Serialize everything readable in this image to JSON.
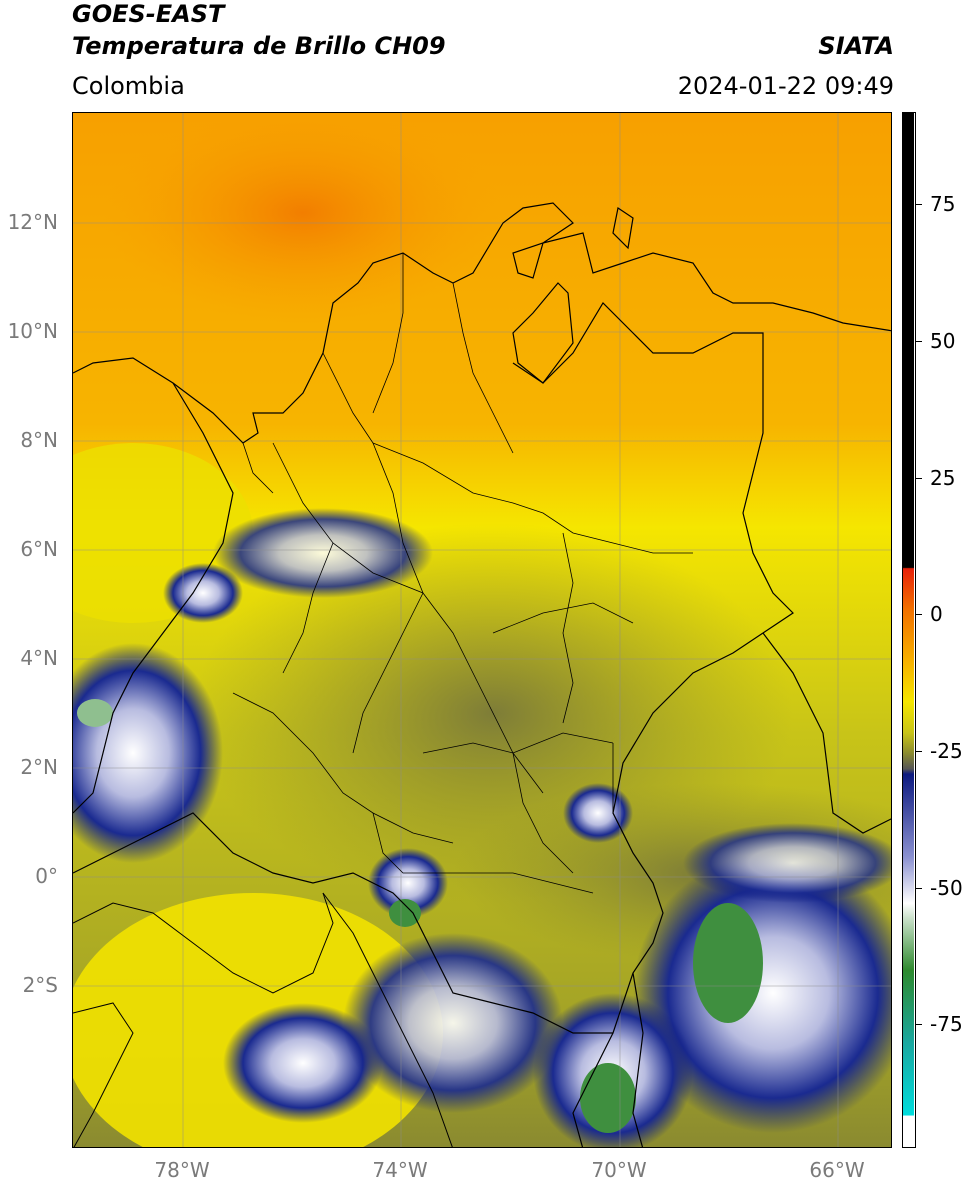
{
  "header": {
    "title_line1": "GOES-EAST",
    "title_line2": "Temperatura de Brillo CH09",
    "organization": "SIATA",
    "region": "Colombia",
    "timestamp": "2024-01-22 09:49"
  },
  "map": {
    "lat_ticks": [
      "12°N",
      "10°N",
      "8°N",
      "6°N",
      "4°N",
      "2°N",
      "0°",
      "2°S"
    ],
    "lon_ticks": [
      "78°W",
      "74°W",
      "70°W",
      "66°W"
    ],
    "extent": {
      "lon_min": -80,
      "lon_max": -65,
      "lat_min": -5,
      "lat_max": 14
    }
  },
  "colorbar": {
    "ticks": [
      "75",
      "50",
      "25",
      "0",
      "-25",
      "-50",
      "-75"
    ],
    "range": [
      -100,
      90
    ],
    "colors": {
      "black": "#000000",
      "red": "#e8200a",
      "orange": "#f7a300",
      "yellow": "#f5e600",
      "olive": "#8a8a30",
      "gray": "#565656",
      "navy": "#0d1a80",
      "white": "#ffffff",
      "green": "#2e8a2e",
      "cyan": "#00dcdc"
    }
  }
}
